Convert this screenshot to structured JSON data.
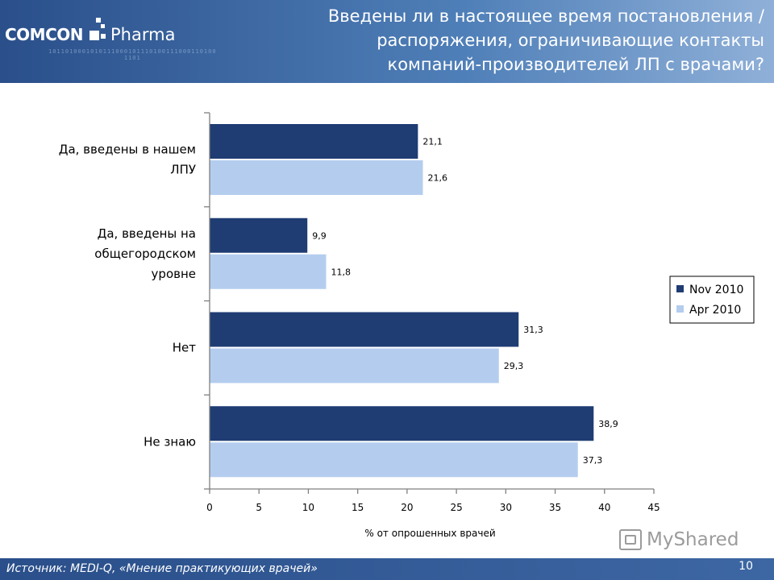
{
  "header": {
    "brand": "COMCON",
    "brand_sub": "Pharma",
    "title_lines": [
      "Введены ли в настоящее время постановления /",
      "распоряжения, ограничивающие контакты",
      "компаний-производителей ЛП с врачами?"
    ]
  },
  "chart_data": {
    "type": "bar",
    "orientation": "horizontal",
    "categories": [
      [
        "Да, введены в нашем",
        "ЛПУ"
      ],
      [
        "Да, введены на",
        "общегородском",
        "уровне"
      ],
      [
        "Нет"
      ],
      [
        "Не знаю"
      ]
    ],
    "series": [
      {
        "name": "Nov 2010",
        "color": "#1f3c73",
        "values": [
          21.1,
          9.9,
          31.3,
          38.9
        ],
        "labels": [
          "21,1",
          "9,9",
          "31,3",
          "38,9"
        ]
      },
      {
        "name": "Apr 2010",
        "color": "#b4cdef",
        "values": [
          21.6,
          11.8,
          29.3,
          37.3
        ],
        "labels": [
          "21,6",
          "11,8",
          "29,3",
          "37,3"
        ]
      }
    ],
    "xlim": [
      0,
      45
    ],
    "xticks": [
      0,
      5,
      10,
      15,
      20,
      25,
      30,
      35,
      40,
      45
    ],
    "xlabel": "% от опрошенных врачей",
    "legend_position": "right",
    "grid": false
  },
  "footer": {
    "source": "Источник: MEDI-Q, «Мнение практикующих врачей»",
    "page_number": "10"
  },
  "watermark": {
    "text": "MyShared"
  }
}
